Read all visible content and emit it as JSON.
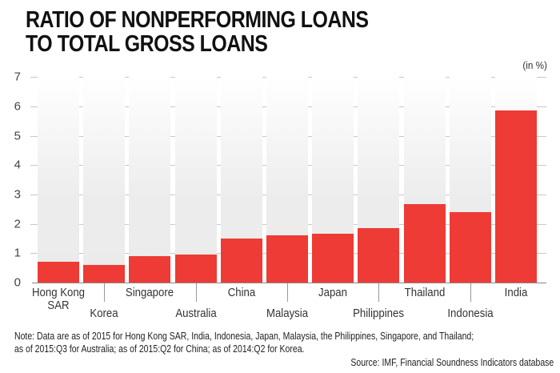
{
  "header": {
    "title_line1": "RATIO OF NONPERFORMING LOANS",
    "title_line2": "TO TOTAL GROSS LOANS",
    "unit_label": "(in %)"
  },
  "colors": {
    "bar": "#ee3b35",
    "column_background": "#ebebeb",
    "gridline": "#c8c8c8"
  },
  "axis": {
    "y_ticks": [
      "0",
      "1",
      "2",
      "3",
      "4",
      "5",
      "6",
      "7"
    ]
  },
  "chart_data": {
    "type": "bar",
    "title": "Ratio of Nonperforming Loans to Total Gross Loans",
    "xlabel": "",
    "ylabel": "(in %)",
    "ylim": [
      0,
      7
    ],
    "grid": true,
    "legend": null,
    "categories": [
      "Hong Kong SAR",
      "Korea",
      "Singapore",
      "Australia",
      "China",
      "Malaysia",
      "Japan",
      "Philippines",
      "Thailand",
      "Indonesia",
      "India"
    ],
    "values": [
      0.7,
      0.6,
      0.9,
      0.95,
      1.5,
      1.6,
      1.65,
      1.85,
      2.67,
      2.4,
      5.85
    ]
  },
  "labels": [
    {
      "line1": "Hong Kong",
      "line2": "SAR"
    },
    {
      "line1": "Korea"
    },
    {
      "line1": "Singapore"
    },
    {
      "line1": "Australia"
    },
    {
      "line1": "China"
    },
    {
      "line1": "Malaysia"
    },
    {
      "line1": "Japan"
    },
    {
      "line1": "Philippines"
    },
    {
      "line1": "Thailand"
    },
    {
      "line1": "Indonesia"
    },
    {
      "line1": "India"
    }
  ],
  "footer": {
    "note_line1": "Note: Data are as of 2015 for Hong Kong SAR, India, Indonesia, Japan, Malaysia, the Philippines, Singapore, and Thailand;",
    "note_line2": "as of 2015:Q3 for Australia; as of 2015:Q2 for China; as of 2014:Q2 for Korea.",
    "source": "Source: IMF, Financial Soundness Indicators database"
  }
}
